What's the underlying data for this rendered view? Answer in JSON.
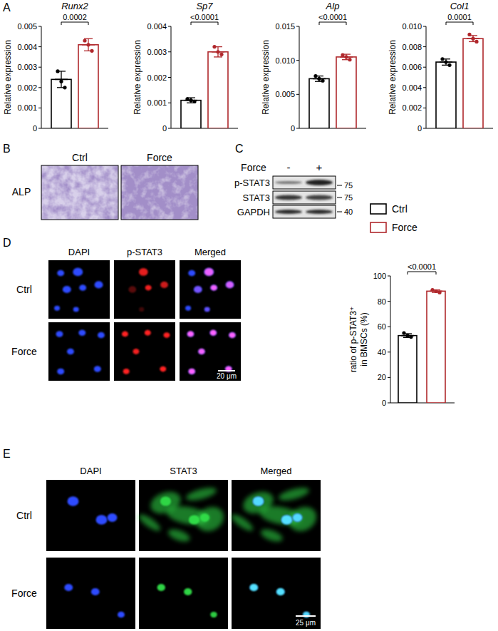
{
  "chart_data": [
    {
      "type": "bar",
      "title": "Runx2",
      "y_label": "Relative expression",
      "categories": [
        null,
        null
      ],
      "values": [
        0.0024,
        0.0041
      ],
      "error": [
        0.0004,
        0.0003
      ],
      "points": [
        [
          0.0028,
          0.0023,
          0.002
        ],
        [
          0.0043,
          0.0041,
          0.0038
        ]
      ],
      "colors": [
        "#000000",
        "#b0282c"
      ],
      "ylim": [
        0,
        0.005
      ],
      "yticks": [
        0,
        0.001,
        0.002,
        0.003,
        0.004,
        0.005
      ],
      "annotations": [
        {
          "text": "0.0002"
        }
      ]
    },
    {
      "type": "bar",
      "title": "Sp7",
      "y_label": "Relative expression",
      "categories": [
        null,
        null
      ],
      "values": [
        0.0011,
        0.003
      ],
      "error": [
        0.0001,
        0.0002
      ],
      "points": [
        [
          0.00115,
          0.0011,
          0.00105
        ],
        [
          0.0032,
          0.003,
          0.0029
        ]
      ],
      "colors": [
        "#000000",
        "#b0282c"
      ],
      "ylim": [
        0,
        0.004
      ],
      "yticks": [
        0,
        0.001,
        0.002,
        0.003,
        0.004
      ],
      "annotations": [
        {
          "text": "<0.0001"
        }
      ]
    },
    {
      "type": "bar",
      "title": "Alp",
      "y_label": "Relative expression",
      "categories": [
        null,
        null
      ],
      "values": [
        0.0073,
        0.0105
      ],
      "error": [
        0.0004,
        0.0004
      ],
      "points": [
        [
          0.0077,
          0.0073,
          0.007
        ],
        [
          0.0108,
          0.0105,
          0.0101
        ]
      ],
      "colors": [
        "#000000",
        "#b0282c"
      ],
      "ylim": [
        0,
        0.015
      ],
      "yticks": [
        0,
        0.005,
        {
          "value": 0.01,
          "label": "0.010"
        },
        0.015
      ],
      "annotations": [
        {
          "text": "<0.0001"
        }
      ]
    },
    {
      "type": "bar",
      "title": "Col1",
      "y_label": "Relative expression",
      "categories": [
        null,
        null
      ],
      "values": [
        0.0065,
        0.0088
      ],
      "error": [
        0.0003,
        0.0003
      ],
      "points": [
        [
          0.0068,
          0.0065,
          0.0062
        ],
        [
          0.0092,
          0.0088,
          0.0085
        ]
      ],
      "colors": [
        "#000000",
        "#b0282c"
      ],
      "ylim": [
        0,
        0.01
      ],
      "yticks": [
        0,
        0.002,
        0.004,
        0.006,
        0.008,
        {
          "value": 0.01,
          "label": "0.010"
        }
      ],
      "annotations": [
        {
          "text": "0.0001"
        }
      ]
    },
    {
      "type": "bar",
      "y_label": [
        "ratio of p-STAT3⁺",
        "in BMSCs (%)"
      ],
      "categories": [
        null,
        null
      ],
      "values": [
        53,
        88
      ],
      "error": [
        1.5,
        1
      ],
      "points": [
        [
          55,
          53,
          52
        ],
        [
          89,
          88,
          87
        ]
      ],
      "colors": [
        "#000000",
        "#b0282c"
      ],
      "ylim": [
        0,
        100
      ],
      "yticks": [
        0,
        20,
        40,
        60,
        80,
        100
      ],
      "annotations": [
        {
          "text": "<0.0001"
        }
      ]
    }
  ],
  "figure": {
    "panel_labels": [
      "A",
      "B",
      "C",
      "D",
      "E"
    ],
    "legend": [
      {
        "name": "Ctrl",
        "color": "#000000"
      },
      {
        "name": "Force",
        "color": "#b0282c"
      }
    ],
    "panel_b": {
      "columns": [
        "Ctrl",
        "Force"
      ],
      "row": "ALP"
    },
    "panel_c": {
      "treatment": "Force",
      "lanes": [
        "-",
        "+"
      ],
      "rows": [
        "p-STAT3",
        "STAT3",
        "GAPDH"
      ],
      "markers": [
        75,
        75,
        40
      ]
    },
    "panel_d": {
      "columns": [
        "DAPI",
        "p-STAT3",
        "Merged"
      ],
      "rows": [
        "Ctrl",
        "Force"
      ],
      "scale_bar": "20 μm"
    },
    "panel_e": {
      "columns": [
        "DAPI",
        "STAT3",
        "Merged"
      ],
      "rows": [
        "Ctrl",
        "Force"
      ],
      "scale_bar": "25 μm"
    }
  }
}
